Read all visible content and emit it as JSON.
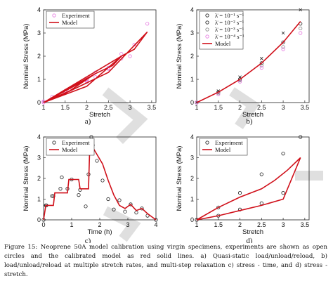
{
  "colors": {
    "model": "#d0101a",
    "experiment_a": "#e678e0",
    "experiment_c": "#222222"
  },
  "caption": "Figure 15:  Neoprene 50A model calibration using virgin specimens, experiments are shown as open circles and the calibrated model as red solid lines. a) Quasi-static load/unload/reload, b) load/unload/reload at multiple stretch rates, and multi-step relaxation c) stress - time, and d) stress - stretch.",
  "panels": [
    {
      "id": "a",
      "label": "a)",
      "xlabel": "Stretch",
      "ylabel": "Nominal Stress (MPa)",
      "xticks": [
        "1",
        "1.5",
        "2",
        "2.5",
        "3",
        "3.5"
      ],
      "yticks": [
        "0",
        "1",
        "2",
        "3",
        "4"
      ],
      "legend": [
        "Experiment",
        "Model"
      ]
    },
    {
      "id": "b",
      "label": "b)",
      "xlabel": "Stretch",
      "ylabel": "Nominal Stress (MPa)",
      "xticks": [
        "1",
        "1.5",
        "2",
        "2.5",
        "3",
        "3.5"
      ],
      "yticks": [
        "0",
        "1",
        "2",
        "3",
        "4"
      ],
      "legend": [
        "λ̇ = 10⁻¹ s⁻¹",
        "λ̇ = 10⁻² s⁻¹",
        "λ̇ = 10⁻³ s⁻¹",
        "λ̇ = 10⁻⁴ s⁻¹",
        "Model"
      ]
    },
    {
      "id": "c",
      "label": "c)",
      "xlabel": "Time (h)",
      "ylabel": "Nominal Stress (MPa)",
      "xticks": [
        "0",
        "1",
        "2",
        "3",
        "4"
      ],
      "yticks": [
        "0",
        "1",
        "2",
        "3",
        "4"
      ],
      "legend": [
        "Experiment",
        "Model"
      ]
    },
    {
      "id": "d",
      "label": "d)",
      "xlabel": "Stretch",
      "ylabel": "Nominal Stress (MPa)",
      "xticks": [
        "1",
        "1.5",
        "2",
        "2.5",
        "3",
        "3.5"
      ],
      "yticks": [
        "0",
        "1",
        "2",
        "3",
        "4"
      ],
      "legend": [
        "Experiment",
        "Model"
      ]
    }
  ],
  "chart_data": [
    {
      "type": "line",
      "panel": "a",
      "xlabel": "Stretch",
      "ylabel": "Nominal Stress (MPa)",
      "xlim": [
        1,
        3.6
      ],
      "ylim": [
        0,
        4
      ],
      "series": [
        {
          "name": "Experiment",
          "x": [
            1,
            1.5,
            2,
            2.2,
            2.0,
            1.6,
            1.2,
            1.0,
            1.5,
            2.2,
            2.5,
            2.8,
            2.5,
            2.0,
            1.5,
            1.0,
            2.0,
            2.8,
            3.1,
            3.4,
            3.0,
            2.5,
            2.0,
            1.5,
            1.0
          ],
          "y": [
            0,
            0.45,
            0.95,
            1.3,
            0.9,
            0.55,
            0.25,
            0.05,
            0.45,
            1.1,
            1.45,
            2.1,
            1.5,
            1.0,
            0.5,
            0.05,
            1.0,
            1.9,
            2.5,
            3.4,
            2.0,
            1.5,
            0.9,
            0.45,
            0.05
          ]
        },
        {
          "name": "Model",
          "x": [
            1,
            1.5,
            2,
            2.2,
            1.6,
            1.0,
            2.2,
            2.6,
            2.8,
            2.0,
            1.0,
            2.8,
            3.1,
            3.4,
            2.5,
            1.5,
            1.0
          ],
          "y": [
            0,
            0.5,
            1.0,
            1.25,
            0.5,
            0,
            1.25,
            1.6,
            2.0,
            0.7,
            0,
            2.0,
            2.3,
            3.05,
            1.3,
            0.4,
            0
          ]
        }
      ]
    },
    {
      "type": "line",
      "panel": "b",
      "xlabel": "Stretch",
      "ylabel": "Nominal Stress (MPa)",
      "xlim": [
        1,
        3.6
      ],
      "ylim": [
        0,
        4
      ],
      "series": [
        {
          "name": "λ̇ = 10⁻¹ s⁻¹",
          "x": [
            1,
            1.5,
            2,
            2.5,
            3,
            3.4
          ],
          "y": [
            0,
            0.5,
            1.1,
            1.9,
            3.0,
            4.0
          ]
        },
        {
          "name": "λ̇ = 10⁻² s⁻¹",
          "x": [
            1,
            1.5,
            2,
            2.5,
            3,
            3.4
          ],
          "y": [
            0,
            0.45,
            1.0,
            1.7,
            2.6,
            3.4
          ]
        },
        {
          "name": "λ̇ = 10⁻³ s⁻¹",
          "x": [
            1,
            1.5,
            2,
            2.5,
            3,
            3.4
          ],
          "y": [
            0,
            0.4,
            0.95,
            1.6,
            2.4,
            3.2
          ]
        },
        {
          "name": "λ̇ = 10⁻⁴ s⁻¹",
          "x": [
            1,
            1.5,
            2,
            2.5,
            3,
            3.4
          ],
          "y": [
            0,
            0.35,
            0.9,
            1.5,
            2.3,
            3.0
          ]
        },
        {
          "name": "Model",
          "x": [
            1,
            1.5,
            2,
            2.5,
            3,
            3.4
          ],
          "y": [
            0,
            0.45,
            1.0,
            1.7,
            2.6,
            3.5
          ]
        }
      ]
    },
    {
      "type": "line",
      "panel": "c",
      "xlabel": "Time (h)",
      "ylabel": "Nominal Stress (MPa)",
      "xlim": [
        0,
        4
      ],
      "ylim": [
        0,
        4
      ],
      "series": [
        {
          "name": "Experiment",
          "x": [
            0,
            0.08,
            0.1,
            0.3,
            0.35,
            0.6,
            0.65,
            0.85,
            1.0,
            1.25,
            1.3,
            1.5,
            1.6,
            1.7,
            1.75,
            1.9,
            2.1,
            2.3,
            2.5,
            2.7,
            2.9,
            3.1,
            3.3,
            3.5,
            3.7,
            4.0
          ],
          "y": [
            0,
            0.7,
            0.7,
            1.15,
            1.15,
            1.5,
            2.05,
            1.5,
            1.95,
            1.2,
            1.45,
            0.65,
            2.2,
            4.0,
            3.6,
            2.85,
            1.9,
            1.0,
            0.5,
            0.95,
            0.4,
            0.75,
            0.35,
            0.55,
            0.2,
            0
          ]
        },
        {
          "name": "Model",
          "x": [
            0,
            0.08,
            0.35,
            0.4,
            0.85,
            0.9,
            1.25,
            1.3,
            1.6,
            1.65,
            1.75,
            2.1,
            2.3,
            2.5,
            2.7,
            2.9,
            3.1,
            3.3,
            3.5,
            3.7,
            4.0
          ],
          "y": [
            0,
            0.7,
            0.7,
            1.3,
            1.3,
            1.95,
            1.95,
            1.5,
            1.5,
            3.8,
            3.5,
            2.7,
            1.9,
            1.2,
            0.7,
            0.55,
            0.75,
            0.45,
            0.55,
            0.3,
            0
          ]
        }
      ]
    },
    {
      "type": "line",
      "panel": "d",
      "xlabel": "Stretch",
      "ylabel": "Nominal Stress (MPa)",
      "xlim": [
        1,
        3.6
      ],
      "ylim": [
        0,
        4
      ],
      "series": [
        {
          "name": "Experiment",
          "x": [
            1,
            1.5,
            2,
            2.5,
            3,
            3.4,
            3.0,
            2.5,
            2.0,
            1.5,
            1.0
          ],
          "y": [
            0,
            0.6,
            1.3,
            2.2,
            3.2,
            4.0,
            1.3,
            0.8,
            0.5,
            0.2,
            0
          ]
        },
        {
          "name": "Model",
          "x": [
            1,
            1.5,
            2,
            2.5,
            2.8,
            3.1,
            3.4,
            3.0,
            2.5,
            2.0,
            1.5,
            1.0
          ],
          "y": [
            0,
            0.6,
            1.1,
            1.5,
            1.9,
            2.4,
            3.0,
            1.0,
            0.7,
            0.45,
            0.2,
            0
          ]
        }
      ]
    }
  ]
}
